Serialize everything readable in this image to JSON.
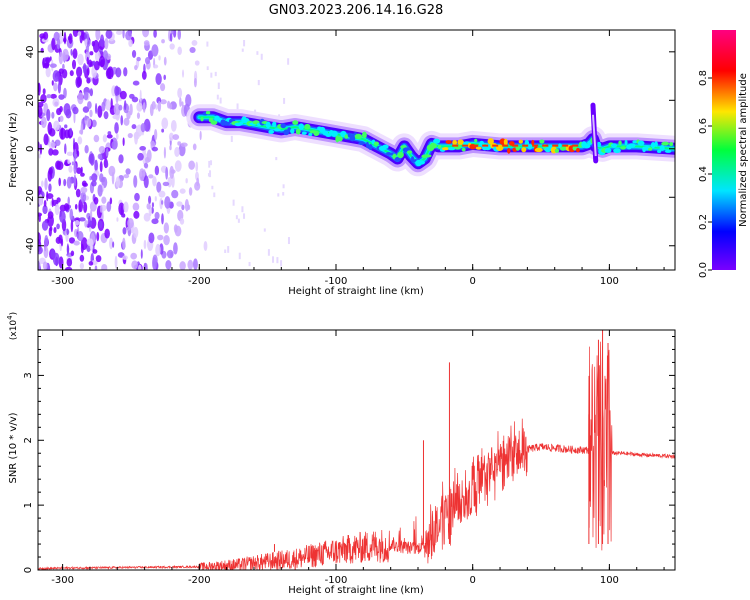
{
  "title": "GN03.2023.206.14.16.G28",
  "chart_data": [
    {
      "type": "heatmap",
      "xlabel": "Height of straight line (km)",
      "ylabel": "Frequency (Hz)",
      "xlim": [
        -318,
        148
      ],
      "ylim": [
        -50,
        49
      ],
      "xticks": [
        -300,
        -200,
        -100,
        0,
        100
      ],
      "yticks": [
        -40,
        -20,
        0,
        20,
        40
      ],
      "xtick_labels": [
        "-300",
        "-200",
        "-100",
        "0",
        "100"
      ],
      "ytick_labels": [
        "-40",
        "-20",
        "0",
        "20",
        "40"
      ],
      "colorbar": {
        "label": "Normalized spectral amplitude",
        "range": [
          0,
          1
        ],
        "ticks": [
          0.0,
          0.2,
          0.4,
          0.6,
          0.8
        ],
        "tick_labels": [
          "0.0",
          "0.2",
          "0.4",
          "0.6",
          "0.8"
        ],
        "colormap": [
          "#7a00ff",
          "#0000ff",
          "#00e5ff",
          "#00ff3c",
          "#ffe600",
          "#ff0000",
          "#ff0080"
        ]
      },
      "ridge": {
        "x": [
          -200,
          -190,
          -180,
          -170,
          -160,
          -150,
          -140,
          -130,
          -120,
          -110,
          -100,
          -90,
          -80,
          -70,
          -60,
          -55,
          -50,
          -45,
          -40,
          -35,
          -30,
          -25,
          -20,
          -10,
          0,
          20,
          40,
          60,
          80,
          85,
          88,
          90,
          95,
          100,
          120,
          148
        ],
        "y": [
          13,
          13,
          11,
          11,
          10,
          9,
          8,
          9,
          8,
          7,
          6,
          5,
          4,
          1,
          -2,
          -4,
          1,
          -3,
          -6,
          -4,
          2,
          1,
          1,
          1,
          2,
          1,
          1,
          1,
          1,
          2,
          4,
          1,
          0,
          1,
          1,
          0
        ]
      },
      "spike": {
        "x": 88,
        "y": [
          -5,
          18
        ]
      }
    },
    {
      "type": "line",
      "xlabel": "Height of straight line (km)",
      "ylabel": "SNR (10 * v/v)",
      "multiplier": "(x10",
      "multiplier_exp": "4",
      "xlim": [
        -318,
        148
      ],
      "ylim": [
        0,
        3.7
      ],
      "xticks": [
        -300,
        -200,
        -100,
        0,
        100
      ],
      "yticks": [
        0,
        1,
        2,
        3
      ],
      "xtick_labels": [
        "-300",
        "-200",
        "-100",
        "0",
        "100"
      ],
      "ytick_labels": [
        "0",
        "1",
        "2",
        "3"
      ],
      "color": "#ee3333",
      "series_env": {
        "x": [
          -318,
          -300,
          -250,
          -200,
          -170,
          -150,
          -130,
          -110,
          -90,
          -70,
          -60,
          -50,
          -40,
          -30,
          -20,
          -10,
          0,
          10,
          20,
          30,
          40,
          50,
          60,
          70,
          80,
          85,
          100,
          110,
          120,
          148
        ],
        "y": [
          0.02,
          0.03,
          0.04,
          0.05,
          0.08,
          0.13,
          0.17,
          0.25,
          0.32,
          0.38,
          0.38,
          0.35,
          0.33,
          0.55,
          0.85,
          1.05,
          1.22,
          1.45,
          1.62,
          1.76,
          1.86,
          1.9,
          1.88,
          1.86,
          1.85,
          1.85,
          1.8,
          1.8,
          1.78,
          1.75
        ]
      },
      "spikes": [
        {
          "x": -145,
          "y": 0.28
        },
        {
          "x": -36,
          "y": 2.0
        },
        {
          "x": -17,
          "y": 3.2
        },
        {
          "x": 85,
          "y": 2.4
        },
        {
          "x": 92,
          "y": 3.55
        },
        {
          "x": 95,
          "y": 3.7
        },
        {
          "x": 99,
          "y": 3.5
        }
      ]
    }
  ]
}
